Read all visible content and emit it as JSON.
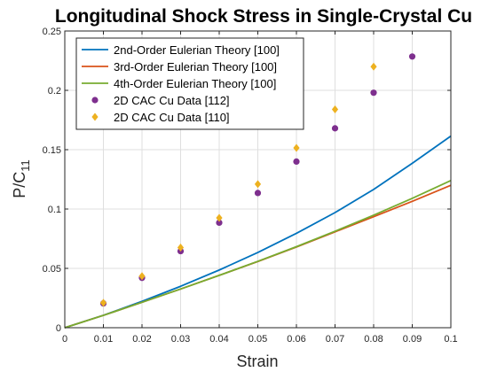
{
  "chart_data": {
    "type": "line",
    "title": "Longitudinal Shock Stress in Single-Crystal Cu",
    "xlabel": "Strain",
    "ylabel_main": "P/C",
    "ylabel_sub": "11",
    "xlim": [
      0,
      0.1
    ],
    "ylim": [
      0,
      0.25
    ],
    "xticks": [
      0,
      0.01,
      0.02,
      0.03,
      0.04,
      0.05,
      0.06,
      0.07,
      0.08,
      0.09,
      0.1
    ],
    "xtick_labels": [
      "0",
      "0.01",
      "0.02",
      "0.03",
      "0.04",
      "0.05",
      "0.06",
      "0.07",
      "0.08",
      "0.09",
      "0.1"
    ],
    "yticks": [
      0,
      0.05,
      0.1,
      0.15,
      0.2,
      0.25
    ],
    "ytick_labels": [
      "0",
      "0.05",
      "0.1",
      "0.15",
      "0.2",
      "0.25"
    ],
    "grid": true,
    "legend_position": "top-left",
    "series": [
      {
        "name": "2nd-Order Eulerian Theory [100]",
        "kind": "line",
        "color": "#0072BD",
        "x": [
          0,
          0.01,
          0.02,
          0.03,
          0.04,
          0.05,
          0.06,
          0.07,
          0.08,
          0.09,
          0.1
        ],
        "y": [
          0,
          0.0105,
          0.0222,
          0.0349,
          0.0486,
          0.0634,
          0.0795,
          0.097,
          0.1165,
          0.1385,
          0.1615
        ]
      },
      {
        "name": "3rd-Order Eulerian Theory [100]",
        "kind": "line",
        "color": "#D95319",
        "x": [
          0,
          0.01,
          0.02,
          0.03,
          0.04,
          0.05,
          0.06,
          0.07,
          0.08,
          0.09,
          0.1
        ],
        "y": [
          0,
          0.0104,
          0.0214,
          0.0326,
          0.0441,
          0.0558,
          0.068,
          0.0808,
          0.0935,
          0.1065,
          0.12
        ]
      },
      {
        "name": "4th-Order Eulerian Theory [100]",
        "kind": "line",
        "color": "#77AC30",
        "x": [
          0,
          0.01,
          0.02,
          0.03,
          0.04,
          0.05,
          0.06,
          0.07,
          0.08,
          0.09,
          0.1
        ],
        "y": [
          0,
          0.0104,
          0.0214,
          0.0326,
          0.0441,
          0.0559,
          0.0683,
          0.0813,
          0.0948,
          0.109,
          0.124
        ]
      },
      {
        "name": "2D CAC Cu Data [112]",
        "kind": "scatter",
        "marker": "circle",
        "color": "#7E2F8E",
        "x": [
          0.01,
          0.02,
          0.03,
          0.04,
          0.05,
          0.06,
          0.07,
          0.08,
          0.09
        ],
        "y": [
          0.0205,
          0.042,
          0.0645,
          0.0885,
          0.1135,
          0.14,
          0.168,
          0.198,
          0.2285
        ]
      },
      {
        "name": "2D CAC Cu Data [110]",
        "kind": "scatter",
        "marker": "diamond",
        "color": "#EDB120",
        "x": [
          0.01,
          0.02,
          0.03,
          0.04,
          0.05,
          0.06,
          0.07,
          0.08
        ],
        "y": [
          0.021,
          0.0435,
          0.0675,
          0.0925,
          0.121,
          0.1515,
          0.184,
          0.22
        ]
      }
    ]
  }
}
